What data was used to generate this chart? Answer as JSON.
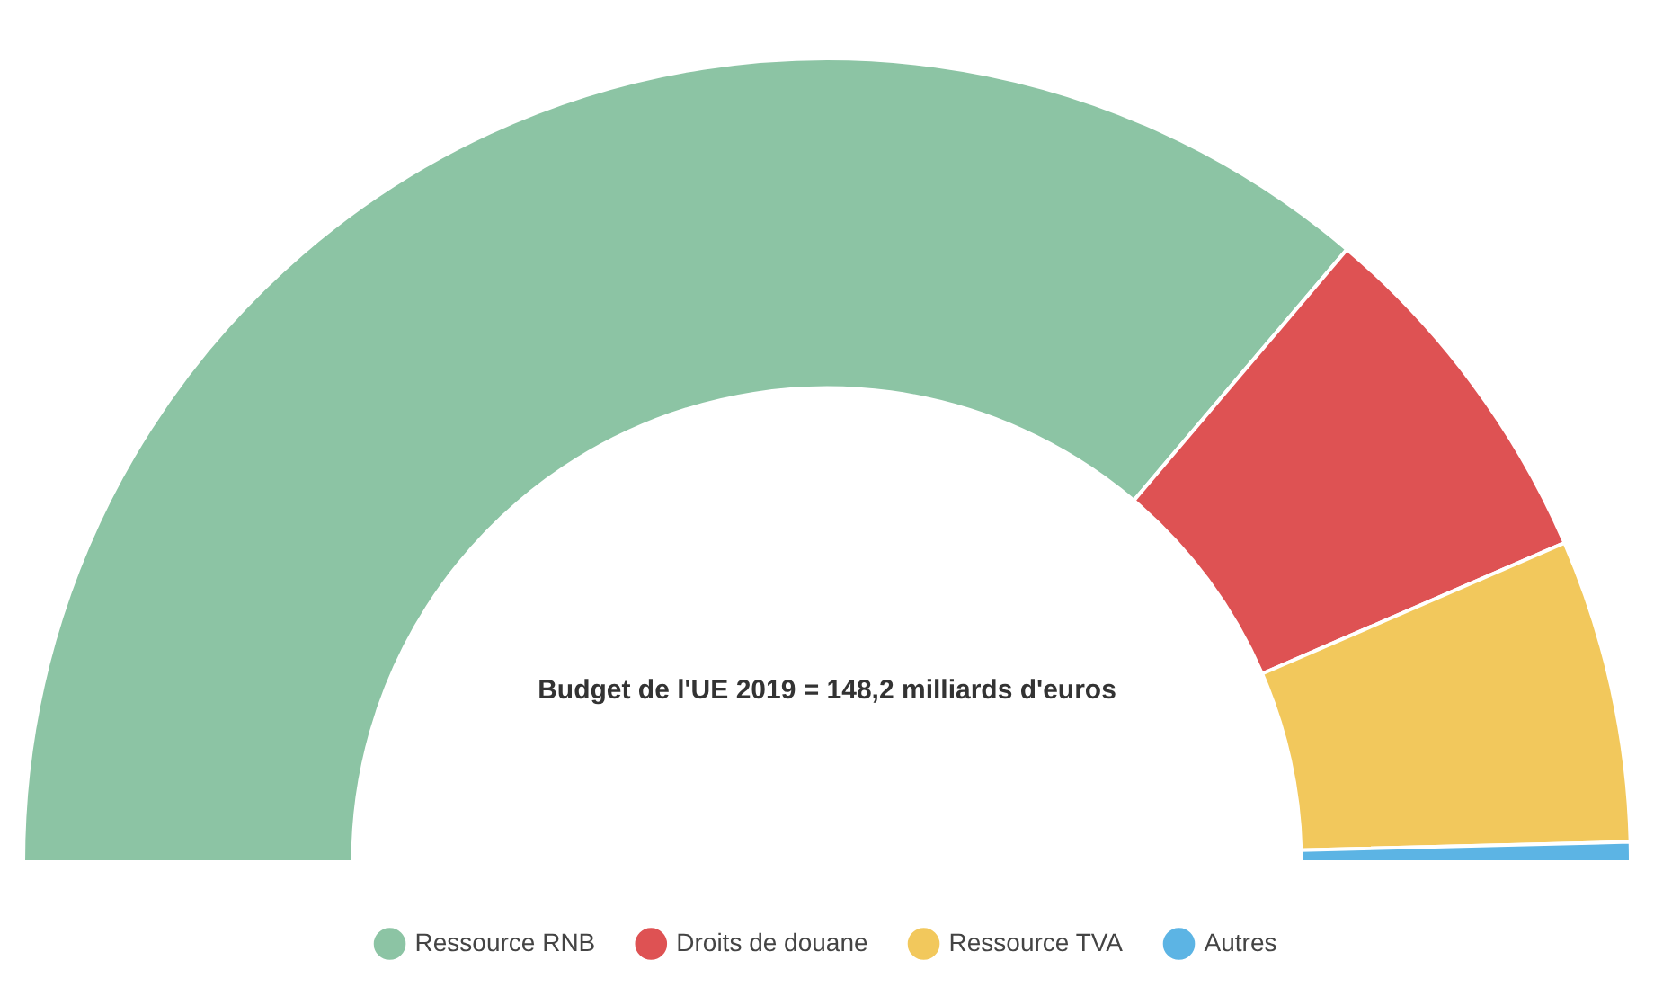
{
  "chart_data": {
    "type": "donut",
    "categories": [
      "Ressource RNB",
      "Droits de douane",
      "Ressource TVA",
      "Autres"
    ],
    "values": [
      72.4,
      14.6,
      12.2,
      0.8
    ],
    "colors": [
      "#8cc4a4",
      "#de5253",
      "#f2c85c",
      "#5cb4e4"
    ],
    "annotations": [
      "Budget de l'UE 2019 = 148,2 milliards d'euros"
    ],
    "legend": "bottom"
  }
}
